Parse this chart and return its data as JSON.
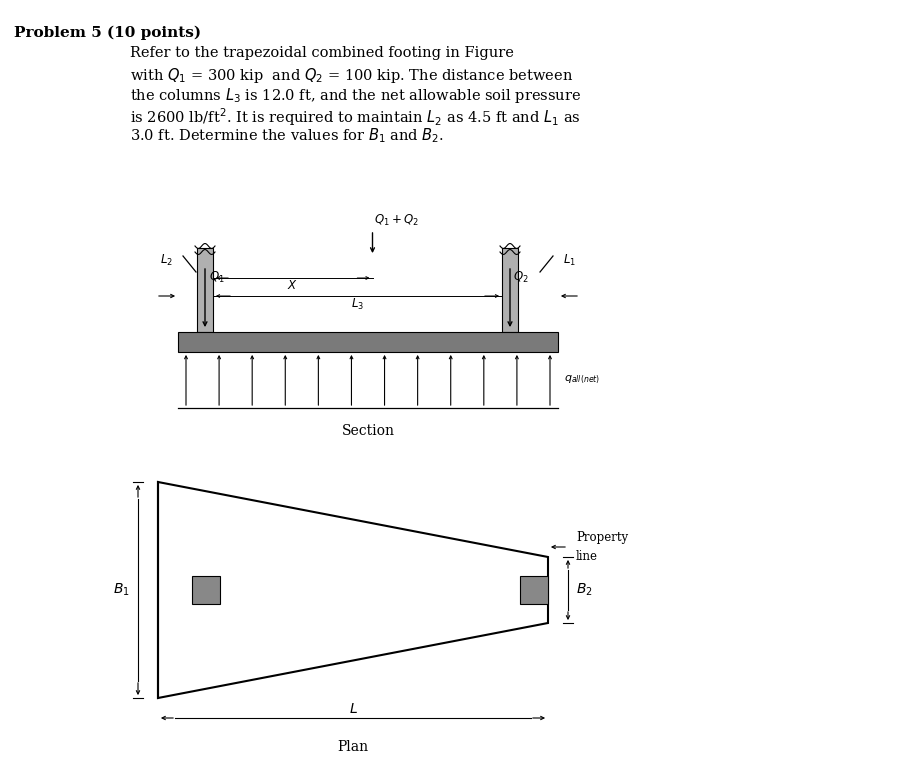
{
  "bg_color": "#ffffff",
  "fig_width": 9.08,
  "fig_height": 7.62,
  "title_bold": "Problem 5 (10 points)",
  "text_lines": [
    "Refer to the trapezoidal combined footing in Figure",
    "with $Q_1$ = 300 kip  and $Q_2$ = 100 kip. The distance between",
    "the columns $L_3$ is 12.0 ft, and the net allowable soil pressure",
    "is 2600 lb/ft$^2$. It is required to maintain $L_2$ as 4.5 ft and $L_1$ as",
    "3.0 ft. Determine the values for $B_1$ and $B_2$."
  ],
  "section_label": "Section",
  "plan_label": "Plan",
  "footing_color": "#7a7a7a",
  "col_color": "#b0b0b0",
  "sq_color": "#888888"
}
